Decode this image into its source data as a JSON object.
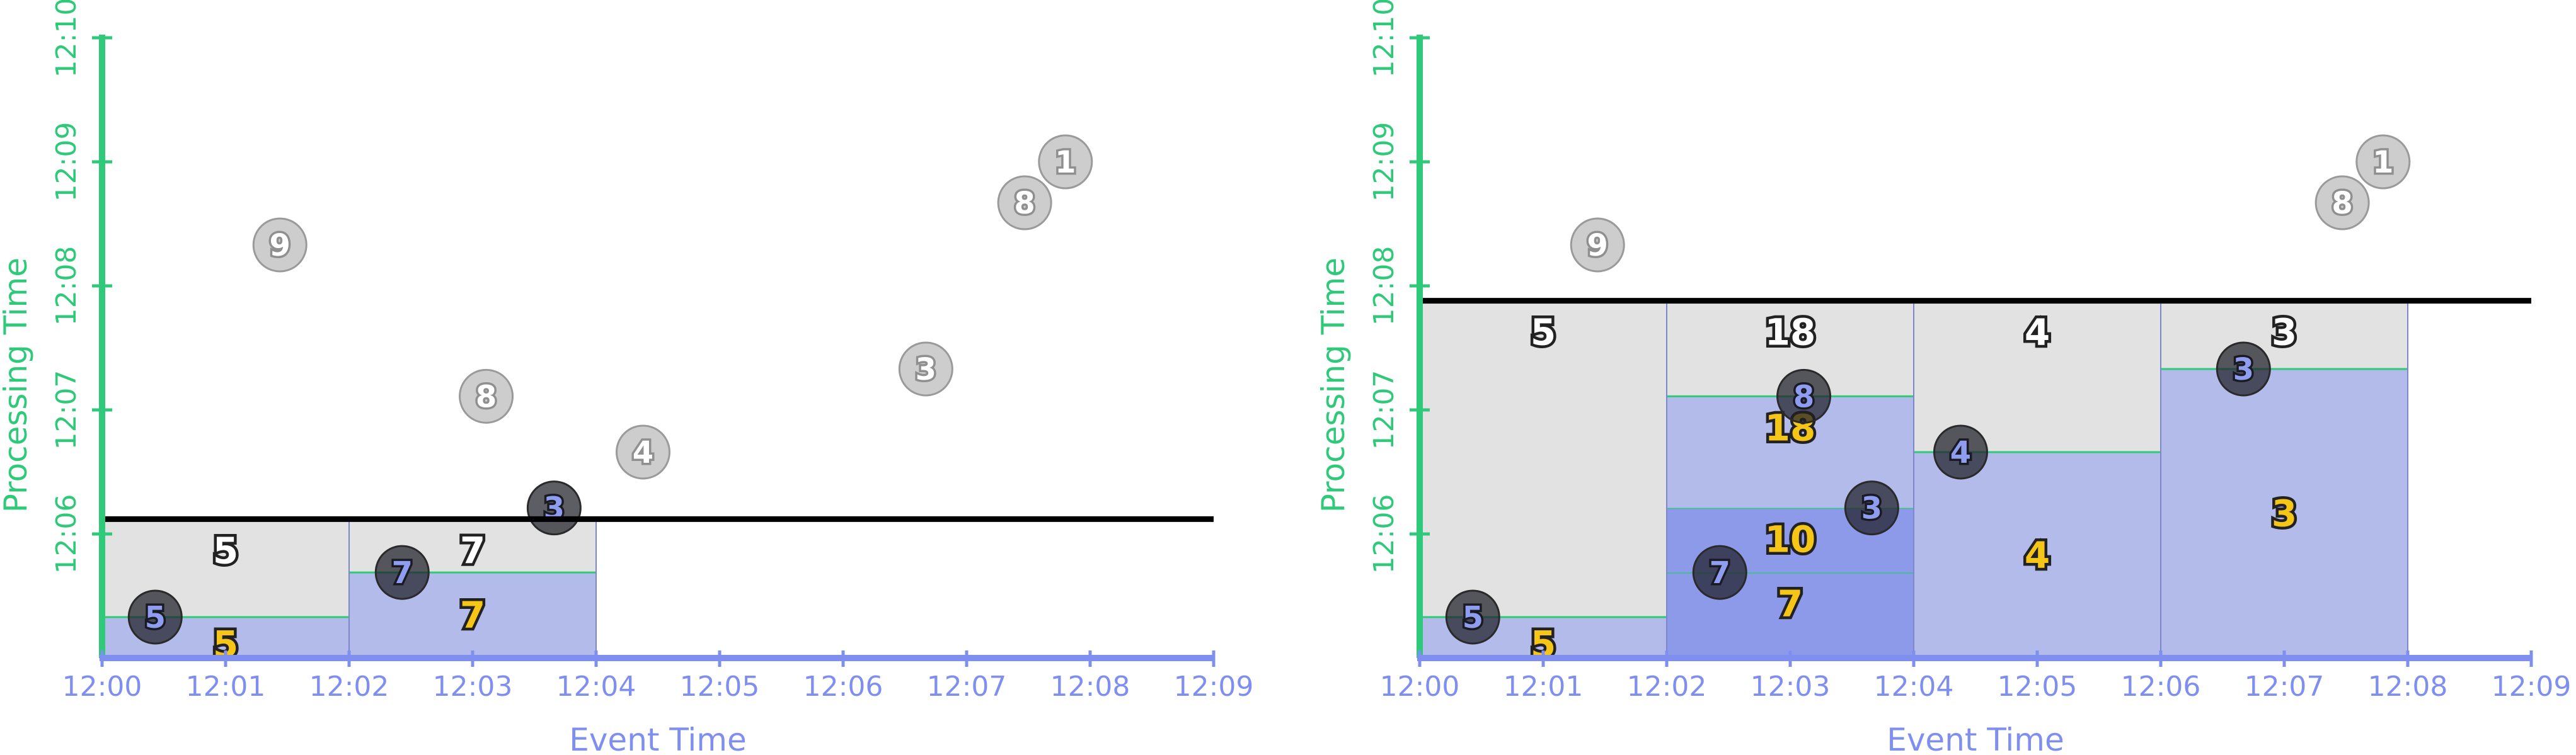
{
  "colors": {
    "green_axis": "#2fc97a",
    "blue_axis": "#7f8fef",
    "gray_pane": "#e2e2e2",
    "blue_pane": "#b3bbea",
    "blue_pane_dark": "#8d9aea",
    "pane_border": "#888888",
    "green_line": "#2fc97a",
    "watermark": "#000000",
    "gold_text": "#f5c518"
  },
  "chart_data": [
    {
      "type": "scatter",
      "title": "",
      "xlabel": "Event Time",
      "ylabel": "Processing Time",
      "x_ticks": [
        "12:00",
        "12:01",
        "12:02",
        "12:03",
        "12:04",
        "12:05",
        "12:06",
        "12:07",
        "12:08",
        "12:09"
      ],
      "y_ticks": [
        "12:06",
        "12:07",
        "12:08",
        "12:09",
        "12:10"
      ],
      "x_range_minutes": [
        0,
        9
      ],
      "y_range_minutes": [
        5.0,
        10.0
      ],
      "watermark_processing_time_minutes": 6.12,
      "watermark_end_event_time_minutes": 9,
      "elements": [
        {
          "value": "5",
          "event_time_min": 0.43,
          "processing_time_min": 5.33,
          "processed": true
        },
        {
          "value": "9",
          "event_time_min": 1.44,
          "processing_time_min": 8.33,
          "processed": false
        },
        {
          "value": "7",
          "event_time_min": 2.43,
          "processing_time_min": 5.69,
          "processed": true
        },
        {
          "value": "8",
          "event_time_min": 3.11,
          "processing_time_min": 7.11,
          "processed": false
        },
        {
          "value": "3",
          "event_time_min": 3.66,
          "processing_time_min": 6.21,
          "processed": true
        },
        {
          "value": "4",
          "event_time_min": 4.38,
          "processing_time_min": 6.66,
          "processed": false
        },
        {
          "value": "3",
          "event_time_min": 6.67,
          "processing_time_min": 7.33,
          "processed": false
        },
        {
          "value": "8",
          "event_time_min": 7.47,
          "processing_time_min": 8.67,
          "processed": false
        },
        {
          "value": "1",
          "event_time_min": 7.8,
          "processing_time_min": 9.0,
          "processed": false
        }
      ],
      "windows": [
        {
          "start": "12:00",
          "end": "12:02",
          "start_min": 0,
          "end_min": 2,
          "trigger_min": 6.12,
          "total": "5",
          "steps": [
            {
              "processing_time_min": 5.33,
              "label": "5"
            }
          ]
        },
        {
          "start": "12:02",
          "end": "12:04",
          "start_min": 2,
          "end_min": 4,
          "trigger_min": 6.12,
          "total": "7",
          "steps": [
            {
              "processing_time_min": 5.69,
              "label": "7"
            }
          ]
        }
      ]
    },
    {
      "type": "scatter",
      "title": "",
      "xlabel": "Event Time",
      "ylabel": "Processing Time",
      "x_ticks": [
        "12:00",
        "12:01",
        "12:02",
        "12:03",
        "12:04",
        "12:05",
        "12:06",
        "12:07",
        "12:08",
        "12:09"
      ],
      "y_ticks": [
        "12:06",
        "12:07",
        "12:08",
        "12:09",
        "12:10"
      ],
      "x_range_minutes": [
        0,
        9
      ],
      "y_range_minutes": [
        5.0,
        10.0
      ],
      "watermark_processing_time_minutes": 7.88,
      "watermark_end_event_time_minutes": 9,
      "elements": [
        {
          "value": "5",
          "event_time_min": 0.43,
          "processing_time_min": 5.33,
          "processed": true
        },
        {
          "value": "9",
          "event_time_min": 1.44,
          "processing_time_min": 8.33,
          "processed": false
        },
        {
          "value": "7",
          "event_time_min": 2.43,
          "processing_time_min": 5.69,
          "processed": true
        },
        {
          "value": "8",
          "event_time_min": 3.11,
          "processing_time_min": 7.11,
          "processed": true
        },
        {
          "value": "3",
          "event_time_min": 3.66,
          "processing_time_min": 6.21,
          "processed": true
        },
        {
          "value": "4",
          "event_time_min": 4.38,
          "processing_time_min": 6.66,
          "processed": true
        },
        {
          "value": "3",
          "event_time_min": 6.67,
          "processing_time_min": 7.33,
          "processed": true
        },
        {
          "value": "8",
          "event_time_min": 7.47,
          "processing_time_min": 8.67,
          "processed": false
        },
        {
          "value": "1",
          "event_time_min": 7.8,
          "processing_time_min": 9.0,
          "processed": false
        }
      ],
      "windows": [
        {
          "start": "12:00",
          "end": "12:02",
          "start_min": 0,
          "end_min": 2,
          "trigger_min": 7.88,
          "total": "5",
          "steps": [
            {
              "processing_time_min": 5.33,
              "label": "5"
            }
          ]
        },
        {
          "start": "12:02",
          "end": "12:04",
          "start_min": 2,
          "end_min": 4,
          "trigger_min": 7.88,
          "total": "18",
          "steps": [
            {
              "processing_time_min": 5.69,
              "label": "7"
            },
            {
              "processing_time_min": 6.21,
              "label": "10"
            },
            {
              "processing_time_min": 7.11,
              "label": "18"
            }
          ]
        },
        {
          "start": "12:04",
          "end": "12:06",
          "start_min": 4,
          "end_min": 6,
          "trigger_min": 7.88,
          "total": "4",
          "steps": [
            {
              "processing_time_min": 6.66,
              "label": "4"
            }
          ]
        },
        {
          "start": "12:06",
          "end": "12:08",
          "start_min": 6,
          "end_min": 8,
          "trigger_min": 7.88,
          "total": "3",
          "steps": [
            {
              "processing_time_min": 7.33,
              "label": "3"
            }
          ]
        }
      ]
    }
  ]
}
